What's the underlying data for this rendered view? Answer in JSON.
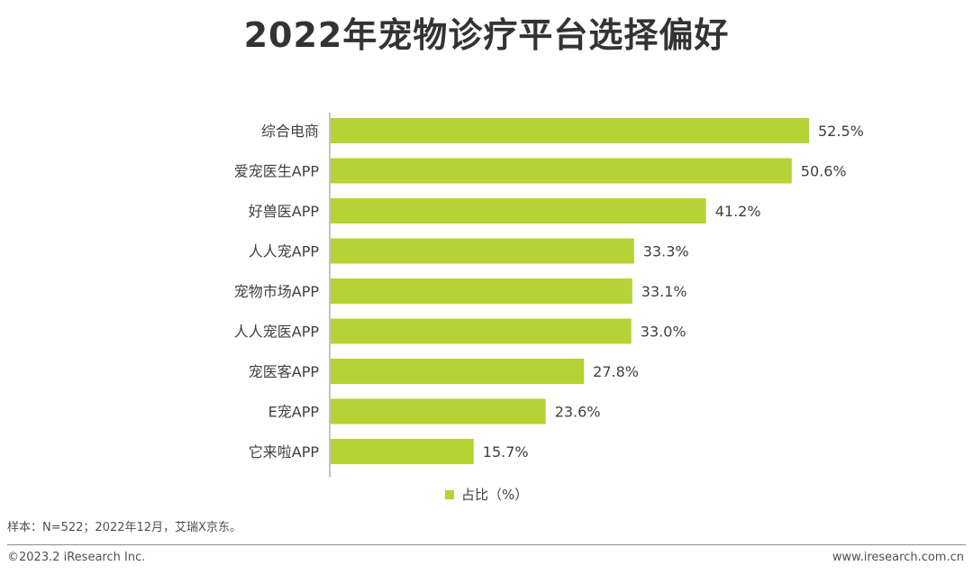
{
  "colors": {
    "bar": "#b5d334",
    "axis": "#888888",
    "text": "#404040"
  },
  "chart_data": {
    "type": "bar",
    "orientation": "horizontal",
    "title": "2022年宠物诊疗平台选择偏好",
    "categories": [
      "综合电商",
      "爱宠医生APP",
      "好兽医APP",
      "人人宠APP",
      "宠物市场APP",
      "人人宠医APP",
      "宠医客APP",
      "E宠APP",
      "它来啦APP"
    ],
    "values": [
      52.5,
      50.6,
      41.2,
      33.3,
      33.1,
      33.0,
      27.8,
      23.6,
      15.7
    ],
    "value_labels": [
      "52.5%",
      "50.6%",
      "41.2%",
      "33.3%",
      "33.1%",
      "33.0%",
      "27.8%",
      "23.6%",
      "15.7%"
    ],
    "series_name": "占比（%）",
    "legend_position": "bottom-center",
    "xlim": [
      0,
      60
    ]
  },
  "footnote": {
    "sample": "样本：N=522；2022年12月，艾瑞X京东。"
  },
  "footer": {
    "copyright": "©2023.2 iResearch Inc.",
    "website": "www.iresearch.com.cn"
  }
}
